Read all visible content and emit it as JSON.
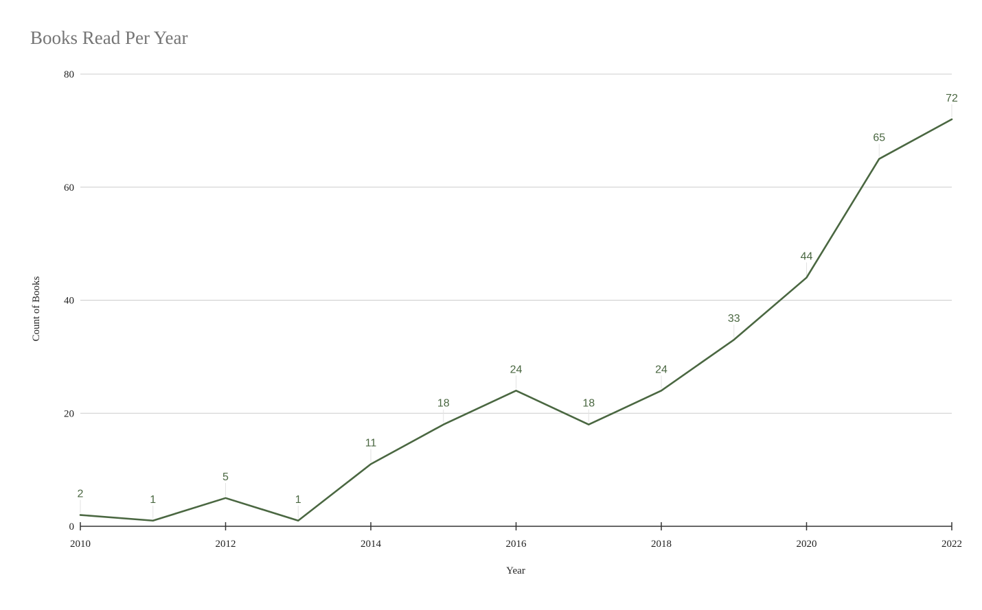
{
  "chart_data": {
    "type": "line",
    "title": "Books Read Per Year",
    "xlabel": "Year",
    "ylabel": "Count of Books",
    "x": [
      2010,
      2011,
      2012,
      2013,
      2014,
      2015,
      2016,
      2017,
      2018,
      2019,
      2020,
      2021,
      2022
    ],
    "series": [
      {
        "values": [
          2,
          1,
          5,
          1,
          11,
          18,
          24,
          18,
          24,
          33,
          44,
          65,
          72
        ],
        "color": "#4a6741"
      }
    ],
    "xlim": [
      2010,
      2022
    ],
    "ylim": [
      0,
      80
    ],
    "x_ticks": [
      "2010",
      "2012",
      "2014",
      "2016",
      "2018",
      "2020",
      "2022"
    ],
    "y_ticks": [
      "0",
      "20",
      "40",
      "60",
      "80"
    ],
    "grid": true,
    "data_labels": true,
    "legend": "none"
  }
}
